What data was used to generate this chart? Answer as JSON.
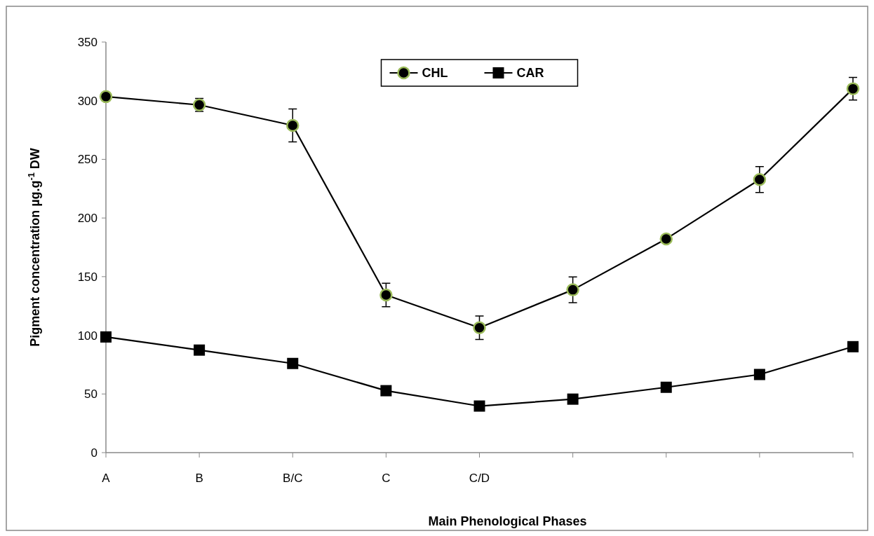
{
  "chart_data": {
    "type": "line",
    "xlabel": "Main Phenological Phases",
    "ylabel": "Pigment concentration µg.g$^{-1}$ DW",
    "categories": [
      "A",
      "B",
      "B/C",
      "C",
      "C/D",
      null,
      null,
      null,
      null
    ],
    "ylim": [
      0,
      350
    ],
    "yticks": [
      0,
      50,
      100,
      150,
      200,
      250,
      300,
      350
    ],
    "grid": false,
    "legend": "top",
    "line_style": "solid",
    "series": [
      {
        "name": "CHL",
        "color": "#000000",
        "marker": "circle",
        "values": [
          303.5,
          296.4,
          278.9,
          134.4,
          106.5,
          138.8,
          182.2,
          232.8,
          310.2
        ],
        "errors": [
          null,
          5.5,
          14,
          10,
          10,
          11,
          null,
          11,
          9.6
        ]
      },
      {
        "name": "CAR",
        "color": "#000000",
        "marker": "square",
        "values": [
          98.6,
          87.4,
          76,
          52.8,
          39.7,
          45.6,
          55.7,
          66.6,
          90.3
        ]
      }
    ]
  }
}
